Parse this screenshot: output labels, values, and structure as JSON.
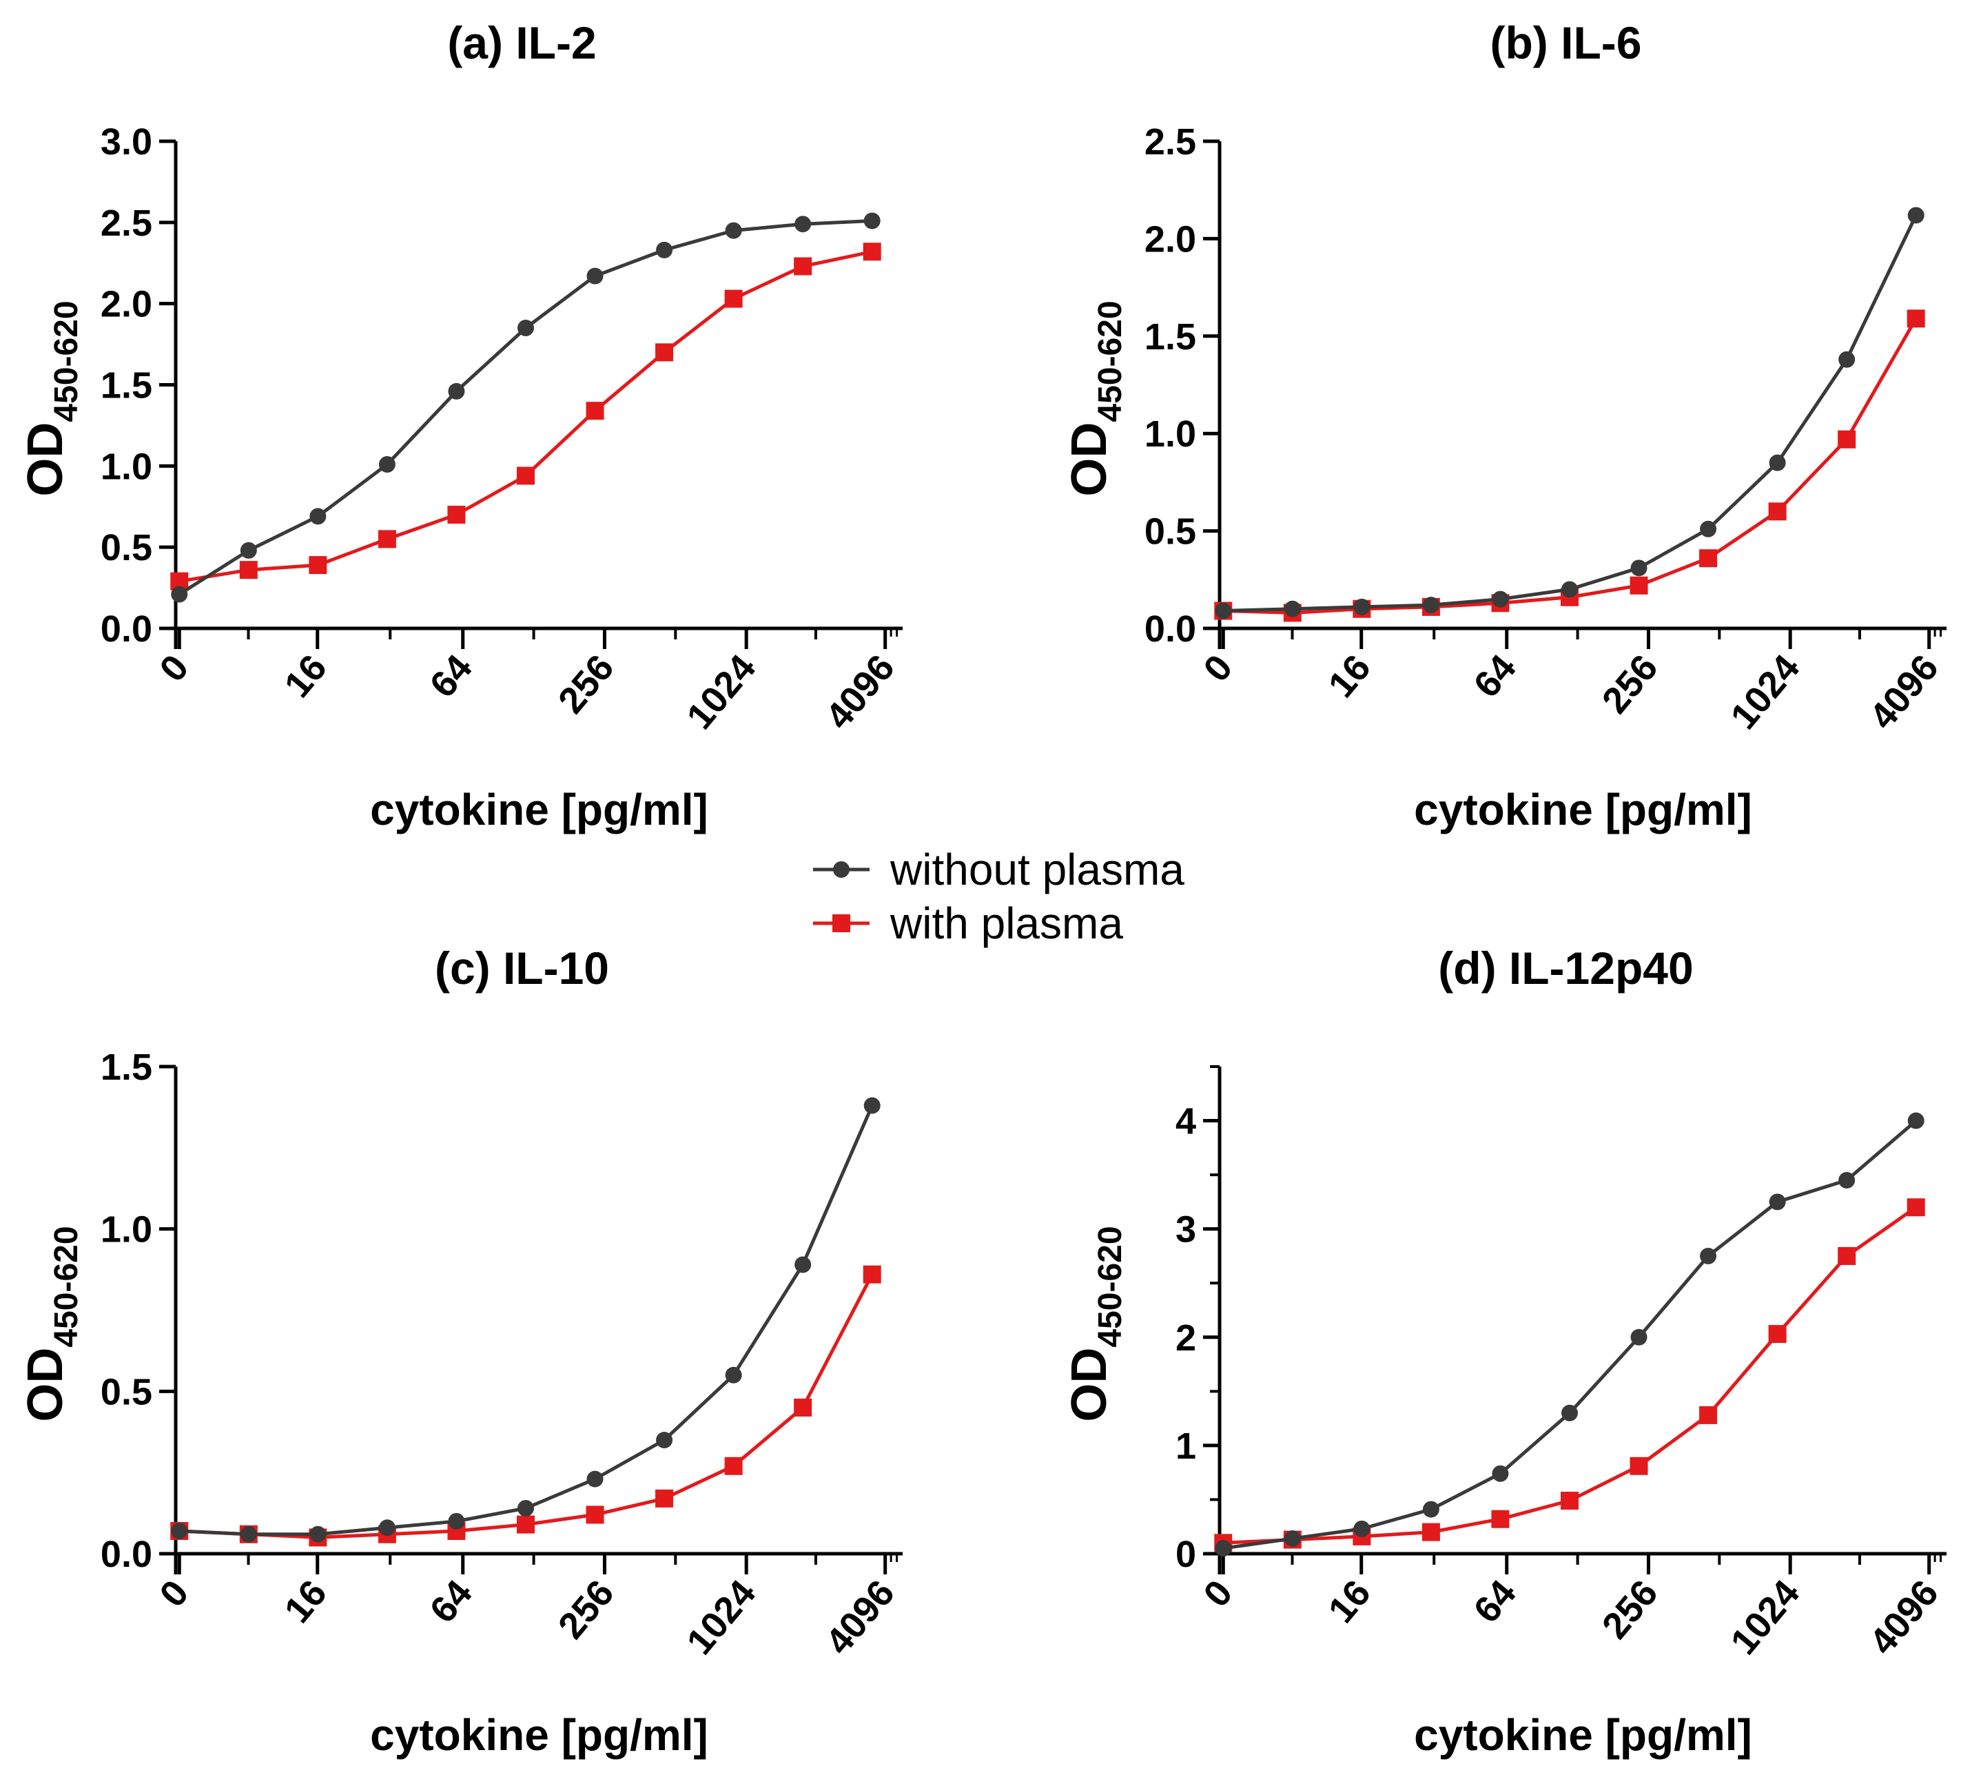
{
  "legend": {
    "items": [
      {
        "label": "without plasma",
        "color": "#3a3a3a",
        "marker": "circle"
      },
      {
        "label": "with plasma",
        "color": "#e31a1c",
        "marker": "square"
      }
    ]
  },
  "chart_data": [
    {
      "type": "line",
      "title": "(a) IL-2",
      "xlabel": "cytokine [pg/ml]",
      "ylabel": "OD",
      "ylabel_sub": "450-620",
      "x_ticks": [
        "0",
        "16",
        "64",
        "256",
        "1024",
        "4096"
      ],
      "ylim": [
        0,
        3.0
      ],
      "y_ticks": [
        "0.0",
        "0.5",
        "1.0",
        "1.5",
        "2.0",
        "2.5",
        "3.0"
      ],
      "series": [
        {
          "name": "without plasma",
          "values": [
            0.21,
            0.48,
            0.69,
            1.01,
            1.46,
            1.85,
            2.17,
            2.33,
            2.45,
            2.49,
            2.51
          ]
        },
        {
          "name": "with plasma",
          "values": [
            0.29,
            0.36,
            0.39,
            0.55,
            0.7,
            0.94,
            1.34,
            1.7,
            2.03,
            2.23,
            2.32
          ]
        }
      ]
    },
    {
      "type": "line",
      "title": "(b) IL-6",
      "xlabel": "cytokine [pg/ml]",
      "ylabel": "OD",
      "ylabel_sub": "450-620",
      "x_ticks": [
        "0",
        "16",
        "64",
        "256",
        "1024",
        "4096"
      ],
      "ylim": [
        0,
        2.5
      ],
      "y_ticks": [
        "0.0",
        "0.5",
        "1.0",
        "1.5",
        "2.0",
        "2.5"
      ],
      "series": [
        {
          "name": "without plasma",
          "values": [
            0.09,
            0.1,
            0.11,
            0.12,
            0.15,
            0.2,
            0.31,
            0.51,
            0.85,
            1.38,
            2.12
          ]
        },
        {
          "name": "with plasma",
          "values": [
            0.09,
            0.08,
            0.1,
            0.11,
            0.13,
            0.16,
            0.22,
            0.36,
            0.6,
            0.97,
            1.59
          ]
        }
      ]
    },
    {
      "type": "line",
      "title": "(c) IL-10",
      "xlabel": "cytokine [pg/ml]",
      "ylabel": "OD",
      "ylabel_sub": "450-620",
      "x_ticks": [
        "0",
        "16",
        "64",
        "256",
        "1024",
        "4096"
      ],
      "ylim": [
        0,
        1.5
      ],
      "y_ticks": [
        "0.0",
        "0.5",
        "1.0",
        "1.5"
      ],
      "series": [
        {
          "name": "without plasma",
          "values": [
            0.07,
            0.06,
            0.06,
            0.08,
            0.1,
            0.14,
            0.23,
            0.35,
            0.55,
            0.89,
            1.38
          ]
        },
        {
          "name": "with plasma",
          "values": [
            0.07,
            0.06,
            0.05,
            0.06,
            0.07,
            0.09,
            0.12,
            0.17,
            0.27,
            0.45,
            0.86
          ]
        }
      ]
    },
    {
      "type": "line",
      "title": "(d) IL-12p40",
      "xlabel": "cytokine [pg/ml]",
      "ylabel": "OD",
      "ylabel_sub": "450-620",
      "x_ticks": [
        "0",
        "16",
        "64",
        "256",
        "1024",
        "4096"
      ],
      "ylim": [
        0,
        4.5
      ],
      "y_ticks": [
        "0",
        "1",
        "2",
        "3",
        "4"
      ],
      "series": [
        {
          "name": "without plasma",
          "values": [
            0.05,
            0.14,
            0.23,
            0.41,
            0.74,
            1.3,
            2.0,
            2.75,
            3.25,
            3.45,
            4.0
          ]
        },
        {
          "name": "with plasma",
          "values": [
            0.1,
            0.13,
            0.16,
            0.2,
            0.32,
            0.49,
            0.81,
            1.28,
            2.03,
            2.75,
            3.2
          ]
        }
      ]
    }
  ]
}
